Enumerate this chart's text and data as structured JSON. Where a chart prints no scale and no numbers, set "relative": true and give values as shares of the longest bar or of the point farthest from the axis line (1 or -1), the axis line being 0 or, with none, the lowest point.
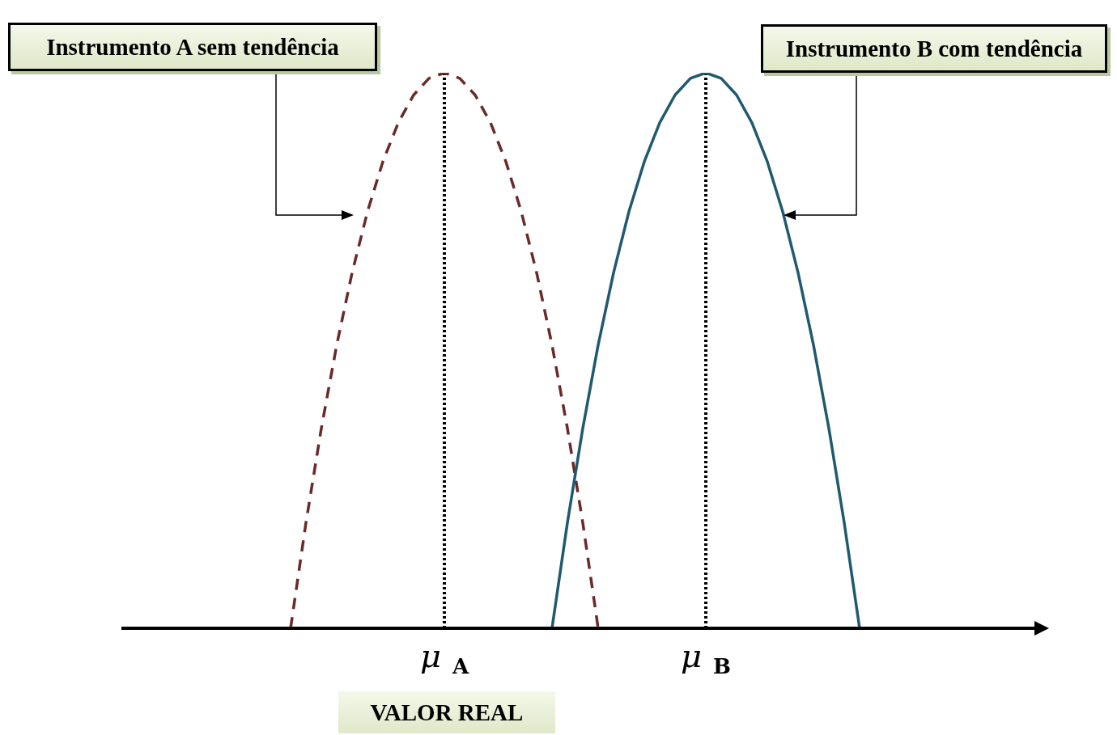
{
  "chart_data": {
    "type": "line",
    "relative": true,
    "categories": [
      null,
      null,
      null,
      null,
      null,
      null,
      null,
      null,
      null,
      null,
      null,
      null,
      null,
      null,
      null,
      null,
      null,
      null,
      null,
      null,
      null,
      "μ$_{A}$",
      null,
      null,
      null,
      null,
      null,
      null,
      null,
      null,
      null,
      null,
      null,
      null,
      null,
      null,
      null,
      null,
      "μ$_{B}$",
      null,
      null,
      null,
      null,
      null,
      null,
      null,
      null,
      null,
      null,
      null,
      null,
      null,
      null,
      null,
      null,
      null,
      null,
      null,
      null
    ],
    "series": [
      {
        "color": "#6b2a2a",
        "line_style": "dashed",
        "values": [
          null,
          null,
          null,
          null,
          null,
          null,
          null,
          null,
          null,
          null,
          null,
          0,
          0.19,
          0.36,
          0.51,
          0.64,
          0.75,
          0.84,
          0.91,
          0.96,
          0.99,
          1,
          0.99,
          0.96,
          0.91,
          0.84,
          0.75,
          0.64,
          0.51,
          0.36,
          0.19,
          0,
          null,
          null,
          null,
          null,
          null,
          null,
          null,
          null,
          null,
          null,
          null,
          null,
          null,
          null,
          null,
          null,
          null,
          null,
          null,
          null,
          null,
          null,
          null,
          null,
          null,
          null,
          null
        ]
      },
      {
        "color": "#215a6e",
        "line_style": "solid",
        "values": [
          null,
          null,
          null,
          null,
          null,
          null,
          null,
          null,
          null,
          null,
          null,
          null,
          null,
          null,
          null,
          null,
          null,
          null,
          null,
          null,
          null,
          null,
          null,
          null,
          null,
          null,
          null,
          null,
          0,
          0.19,
          0.36,
          0.51,
          0.64,
          0.75,
          0.84,
          0.91,
          0.96,
          0.99,
          1,
          0.99,
          0.96,
          0.91,
          0.84,
          0.75,
          0.64,
          0.51,
          0.36,
          0.19,
          0,
          null,
          null,
          null,
          null,
          null,
          null,
          null,
          null,
          null,
          null
        ]
      }
    ],
    "ref_lines": [
      {
        "axis": "x",
        "value": "μ$_{A}$",
        "line_style": "dotted",
        "color": "#000000"
      },
      {
        "axis": "x",
        "value": "μ$_{B}$",
        "line_style": "dotted",
        "color": "#000000"
      }
    ],
    "annotations": [
      "Instrumento A sem tendência",
      "Instrumento B com tendência",
      "VALOR REAL"
    ]
  }
}
